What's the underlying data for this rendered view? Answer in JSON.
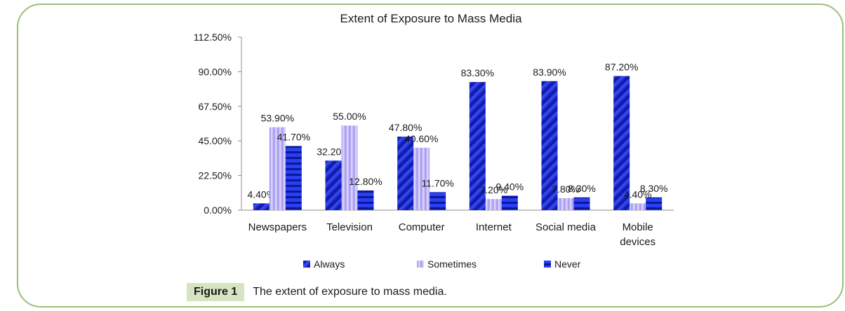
{
  "figure": {
    "label": "Figure 1",
    "caption": "The extent of exposure to mass media."
  },
  "colors": {
    "frame": "#9bbf78",
    "caption_bg": "#d6e4c2",
    "always": "#1f2fd8",
    "sometimes": "#c3b6ff",
    "never": "#1a2fc8"
  },
  "chart_data": {
    "type": "bar",
    "title": "Extent of Exposure to Mass Media",
    "xlabel": "",
    "ylabel": "",
    "categories": [
      "Newspapers",
      "Television",
      "Computer",
      "Internet",
      "Social media",
      "Mobile devices"
    ],
    "category_lines": [
      [
        "Newspapers"
      ],
      [
        "Television"
      ],
      [
        "Computer"
      ],
      [
        "Internet"
      ],
      [
        "Social media"
      ],
      [
        "Mobile",
        "devices"
      ]
    ],
    "series": [
      {
        "name": "Always",
        "values": [
          4.4,
          32.2,
          47.8,
          83.3,
          83.9,
          87.2
        ],
        "labels": [
          "4.40%",
          "32.20%",
          "47.80%",
          "83.30%",
          "83.90%",
          "87.20%"
        ]
      },
      {
        "name": "Sometimes",
        "values": [
          53.9,
          55.0,
          40.6,
          7.2,
          7.8,
          4.4
        ],
        "labels": [
          "53.90%",
          "55.00%",
          "40.60%",
          "7.20%",
          "7.80%",
          "4.40%"
        ]
      },
      {
        "name": "Never",
        "values": [
          41.7,
          12.8,
          11.7,
          9.4,
          8.3,
          8.3
        ],
        "labels": [
          "41.70%",
          "12.80%",
          "11.70%",
          "9.40%",
          "8.30%",
          "8.30%"
        ]
      }
    ],
    "ylim": [
      0,
      112.5
    ],
    "yticks": [
      0,
      22.5,
      45,
      67.5,
      90,
      112.5
    ],
    "ytick_labels": [
      "0.00%",
      "22.50%",
      "45.00%",
      "67.50%",
      "90.00%",
      "112.50%"
    ],
    "grid": false,
    "legend_position": "bottom"
  }
}
